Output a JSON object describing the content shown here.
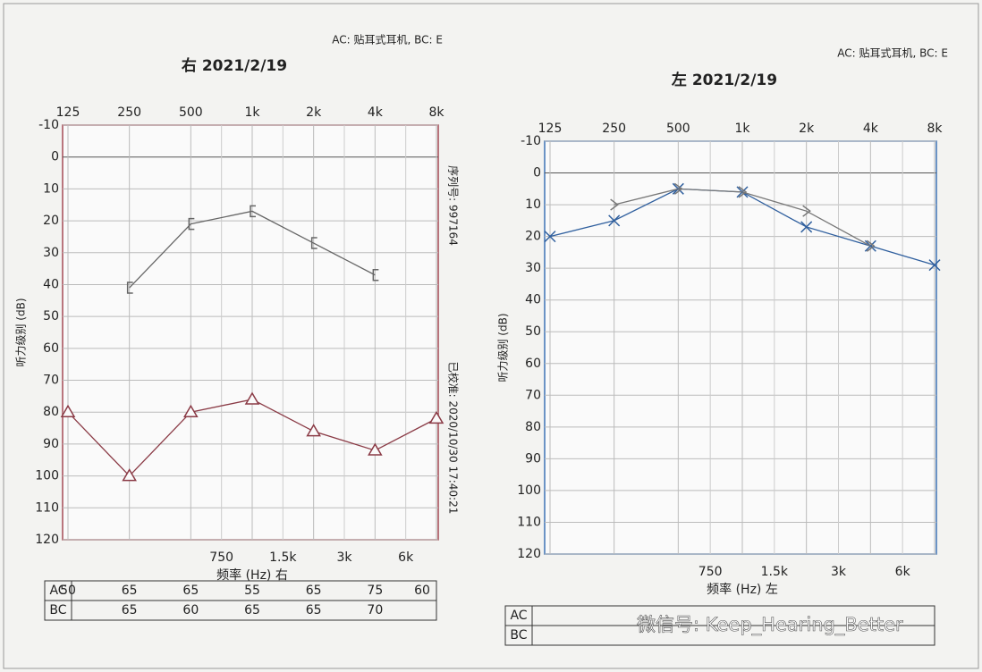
{
  "chart_data": [
    {
      "type": "audiogram",
      "header": "AC: 贴耳式耳机, BC: E",
      "title": "右 2021/2/19",
      "x_label": "频率 (Hz) 右",
      "y_label": "听力级别 (dB)",
      "side_labels": [
        "序列号: 997164",
        "已校准: 2020/10/30 17:40:21"
      ],
      "categories": [
        "125",
        "250",
        "500",
        "1k",
        "2k",
        "4k",
        "8k"
      ],
      "minor_categories": [
        "750",
        "1.5k",
        "3k",
        "6k"
      ],
      "ylim": [
        -10,
        120
      ],
      "y_inverted": true,
      "yticks": [
        -10,
        0,
        10,
        20,
        30,
        40,
        50,
        60,
        70,
        80,
        90,
        100,
        110,
        120
      ],
      "plot_color": "#a44a55",
      "series": [
        {
          "marker": "triangle",
          "color": "#8a3a45",
          "values": [
            80,
            100,
            80,
            76,
            86,
            92,
            82
          ]
        },
        {
          "marker": "bracket",
          "color": "#666666",
          "values": [
            null,
            41,
            21,
            17,
            27,
            37,
            null
          ]
        }
      ],
      "table": {
        "row_labels": [
          "AC",
          "BC"
        ],
        "rows": [
          [
            "50",
            "65",
            "65",
            "55",
            "65",
            "75",
            "60"
          ],
          [
            null,
            "65",
            "60",
            "65",
            "65",
            "70",
            null
          ]
        ]
      }
    },
    {
      "type": "audiogram",
      "header": "AC: 贴耳式耳机, BC: E",
      "title": "左 2021/2/19",
      "x_label": "频率 (Hz) 左",
      "y_label": "听力级别 (dB)",
      "categories": [
        "125",
        "250",
        "500",
        "1k",
        "2k",
        "4k",
        "8k"
      ],
      "minor_categories": [
        "750",
        "1.5k",
        "3k",
        "6k"
      ],
      "ylim": [
        -10,
        120
      ],
      "y_inverted": true,
      "yticks": [
        -10,
        0,
        10,
        20,
        30,
        40,
        50,
        60,
        70,
        80,
        90,
        100,
        110,
        120
      ],
      "plot_color": "#3d73b5",
      "series": [
        {
          "marker": "cross",
          "color": "#2f5f9e",
          "values": [
            20,
            15,
            5,
            6,
            17,
            23,
            29
          ]
        },
        {
          "marker": "angle",
          "color": "#777777",
          "values": [
            null,
            10,
            5,
            6,
            12,
            23,
            null
          ]
        }
      ],
      "table": {
        "row_labels": [
          "AC",
          "BC"
        ],
        "rows": [
          [],
          []
        ]
      }
    }
  ],
  "watermark": "微信号: Keep_Hearing_Better"
}
